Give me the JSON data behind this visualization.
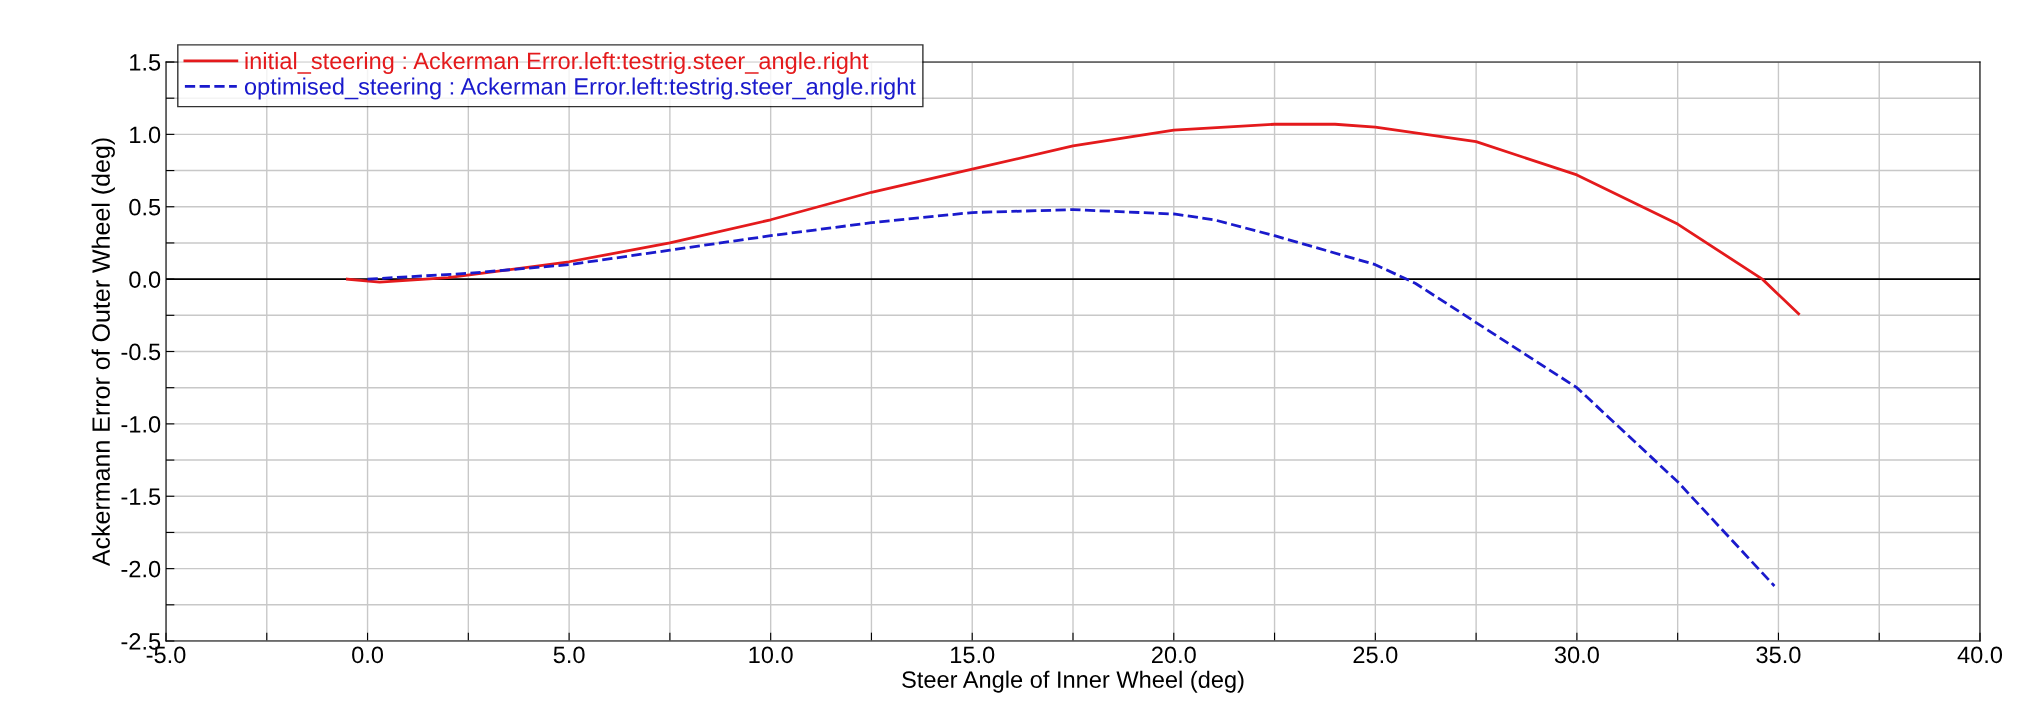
{
  "chart_data": {
    "type": "line",
    "xlabel": "Steer Angle of Inner Wheel (deg)",
    "ylabel": "Ackermann Error of Outer Wheel (deg)",
    "xlim": [
      -5,
      40
    ],
    "ylim": [
      -2.5,
      1.5
    ],
    "xticks": [
      {
        "value": -5,
        "label": "-5.0"
      },
      {
        "value": -2.5,
        "label": null
      },
      {
        "value": 0,
        "label": "0.0"
      },
      {
        "value": 2.5,
        "label": null
      },
      {
        "value": 5,
        "label": "5.0"
      },
      {
        "value": 7.5,
        "label": null
      },
      {
        "value": 10,
        "label": "10.0"
      },
      {
        "value": 12.5,
        "label": null
      },
      {
        "value": 15,
        "label": "15.0"
      },
      {
        "value": 17.5,
        "label": null
      },
      {
        "value": 20,
        "label": "20.0"
      },
      {
        "value": 22.5,
        "label": null
      },
      {
        "value": 25,
        "label": "25.0"
      },
      {
        "value": 27.5,
        "label": null
      },
      {
        "value": 30,
        "label": "30.0"
      },
      {
        "value": 32.5,
        "label": null
      },
      {
        "value": 35,
        "label": "35.0"
      },
      {
        "value": 37.5,
        "label": null
      },
      {
        "value": 40,
        "label": "40.0"
      }
    ],
    "yticks": [
      {
        "value": -2.5,
        "label": "-2.5"
      },
      {
        "value": -2.25,
        "label": null
      },
      {
        "value": -2,
        "label": "-2.0"
      },
      {
        "value": -1.75,
        "label": null
      },
      {
        "value": -1.5,
        "label": "-1.5"
      },
      {
        "value": -1.25,
        "label": null
      },
      {
        "value": -1,
        "label": "-1.0"
      },
      {
        "value": -0.75,
        "label": null
      },
      {
        "value": -0.5,
        "label": "-0.5"
      },
      {
        "value": -0.25,
        "label": null
      },
      {
        "value": 0,
        "label": "0.0"
      },
      {
        "value": 0.25,
        "label": null
      },
      {
        "value": 0.5,
        "label": "0.5"
      },
      {
        "value": 0.75,
        "label": null
      },
      {
        "value": 1,
        "label": "1.0"
      },
      {
        "value": 1.25,
        "label": null
      },
      {
        "value": 1.5,
        "label": "1.5"
      }
    ],
    "grid": true,
    "legend": "top left",
    "ref_lines": [
      {
        "axis": "y",
        "value": 0,
        "color": "#000000",
        "line_style": "solid"
      }
    ],
    "series": [
      {
        "name": "initial_steering : Ackerman Error.left:testrig.steer_angle.right",
        "color": "#e41a1c",
        "line_style": "solid",
        "x": [
          -0.5,
          0.3,
          2,
          5,
          7.5,
          10,
          12.5,
          15,
          17.5,
          20,
          22.5,
          24,
          25,
          27.5,
          30,
          32.5,
          34.6,
          35.5
        ],
        "values": [
          0,
          -0.02,
          0.01,
          0.12,
          0.25,
          0.41,
          0.6,
          0.76,
          0.92,
          1.03,
          1.07,
          1.07,
          1.05,
          0.95,
          0.72,
          0.38,
          0.0,
          -0.24
        ]
      },
      {
        "name": "optimised_steering : Ackerman Error.left:testrig.steer_angle.right",
        "color": "#1a1acc",
        "line_style": "dashed",
        "x": [
          0,
          2.5,
          5,
          7.5,
          10,
          12.5,
          15,
          17.5,
          20,
          21,
          22.5,
          25,
          26,
          27.5,
          30,
          32.5,
          34.9
        ],
        "values": [
          0,
          0.04,
          0.1,
          0.2,
          0.3,
          0.39,
          0.46,
          0.48,
          0.45,
          0.41,
          0.3,
          0.1,
          -0.03,
          -0.3,
          -0.75,
          -1.4,
          -2.12
        ]
      }
    ]
  }
}
